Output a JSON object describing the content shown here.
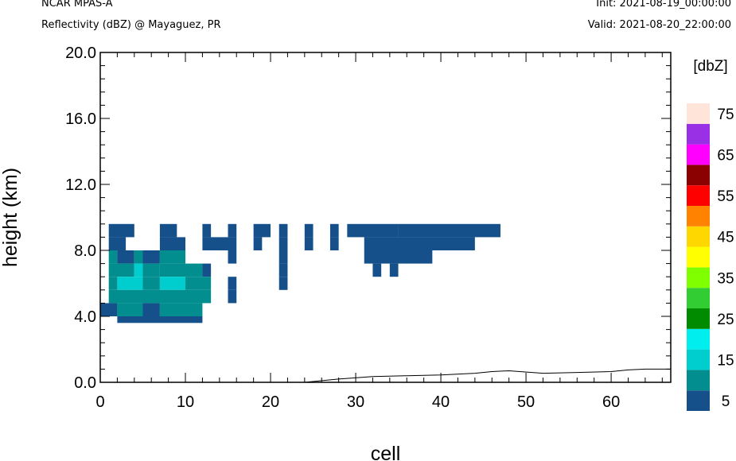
{
  "header": {
    "model": "NCAR MPAS-A",
    "field": "Reflectivity (dBZ) @ Mayaguez, PR",
    "init": "Init: 2021-08-19_00:00:00",
    "valid": "Valid: 2021-08-20_22:00:00"
  },
  "chart_data": {
    "type": "heatmap",
    "xlabel": "cell",
    "ylabel": "height (km)",
    "xlim": [
      0,
      67
    ],
    "ylim": [
      0,
      20
    ],
    "x_ticks": [
      0,
      10,
      20,
      30,
      40,
      50,
      60
    ],
    "y_ticks": [
      "0.0",
      "4.0",
      "8.0",
      "12.0",
      "16.0",
      "20.0"
    ],
    "colorbar": {
      "title": "[dbZ]",
      "labels": [
        "5",
        "15",
        "25",
        "35",
        "45",
        "55",
        "65",
        "75"
      ],
      "colors": [
        "#15508a",
        "#028e8e",
        "#00cdcd",
        "#00eeee",
        "#008b00",
        "#32cd32",
        "#7fff00",
        "#ffff00",
        "#ffd700",
        "#ff8200",
        "#ff0000",
        "#8b0000",
        "#ff00ff",
        "#9a30e6",
        "#ffe4d9"
      ]
    },
    "grid_km_rows": [
      {
        "y": [
          8.8,
          9.6
        ],
        "bins": [
          [
            [
              1,
              4
            ],
            0
          ],
          [
            [
              7,
              9
            ],
            0
          ],
          [
            [
              12,
              13
            ],
            0
          ],
          [
            [
              15,
              16
            ],
            0
          ],
          [
            [
              18,
              20
            ],
            0
          ],
          [
            [
              21,
              22
            ],
            0
          ],
          [
            [
              24,
              25
            ],
            0
          ],
          [
            [
              27,
              28
            ],
            0
          ],
          [
            [
              29,
              35
            ],
            0
          ],
          [
            [
              35,
              47
            ],
            0
          ]
        ]
      },
      {
        "y": [
          8.0,
          8.8
        ],
        "bins": [
          [
            [
              1,
              3
            ],
            0
          ],
          [
            [
              7,
              10
            ],
            0
          ],
          [
            [
              12,
              16
            ],
            0
          ],
          [
            [
              18,
              19
            ],
            0
          ],
          [
            [
              21,
              22
            ],
            0
          ],
          [
            [
              24,
              25
            ],
            0
          ],
          [
            [
              27,
              28
            ],
            0
          ],
          [
            [
              31,
              44
            ],
            0
          ]
        ]
      },
      {
        "y": [
          7.2,
          8.0
        ],
        "bins": [
          [
            [
              1,
              2
            ],
            1
          ],
          [
            [
              2,
              4
            ],
            0
          ],
          [
            [
              4,
              5
            ],
            1
          ],
          [
            [
              5,
              7
            ],
            0
          ],
          [
            [
              7,
              10
            ],
            1
          ],
          [
            [
              15,
              16
            ],
            0
          ],
          [
            [
              21,
              22
            ],
            0
          ],
          [
            [
              31,
              39
            ],
            0
          ]
        ]
      },
      {
        "y": [
          6.4,
          7.2
        ],
        "bins": [
          [
            [
              1,
              4
            ],
            1
          ],
          [
            [
              4,
              5
            ],
            2
          ],
          [
            [
              5,
              7
            ],
            1
          ],
          [
            [
              7,
              12
            ],
            1
          ],
          [
            [
              12,
              13
            ],
            0
          ],
          [
            [
              21,
              22
            ],
            0
          ],
          [
            [
              32,
              33
            ],
            0
          ],
          [
            [
              34,
              35
            ],
            0
          ]
        ]
      },
      {
        "y": [
          5.6,
          6.4
        ],
        "bins": [
          [
            [
              1,
              2
            ],
            1
          ],
          [
            [
              2,
              5
            ],
            2
          ],
          [
            [
              5,
              7
            ],
            1
          ],
          [
            [
              7,
              10
            ],
            2
          ],
          [
            [
              10,
              13
            ],
            1
          ],
          [
            [
              15,
              16
            ],
            0
          ],
          [
            [
              21,
              22
            ],
            0
          ]
        ]
      },
      {
        "y": [
          4.8,
          5.6
        ],
        "bins": [
          [
            [
              1,
              13
            ],
            1
          ],
          [
            [
              15,
              16
            ],
            0
          ]
        ]
      },
      {
        "y": [
          4.0,
          4.8
        ],
        "bins": [
          [
            [
              0,
              2
            ],
            0
          ],
          [
            [
              2,
              5
            ],
            1
          ],
          [
            [
              5,
              7
            ],
            0
          ],
          [
            [
              7,
              12
            ],
            1
          ]
        ]
      },
      {
        "y": [
          3.6,
          4.0
        ],
        "bins": [
          [
            [
              2,
              12
            ],
            0
          ]
        ]
      }
    ],
    "terrain": [
      [
        0,
        0.0
      ],
      [
        24,
        0.0
      ],
      [
        28,
        0.2
      ],
      [
        32,
        0.35
      ],
      [
        36,
        0.4
      ],
      [
        40,
        0.45
      ],
      [
        44,
        0.55
      ],
      [
        46,
        0.65
      ],
      [
        48,
        0.7
      ],
      [
        52,
        0.55
      ],
      [
        56,
        0.6
      ],
      [
        60,
        0.65
      ],
      [
        62,
        0.75
      ],
      [
        64,
        0.8
      ],
      [
        67,
        0.8
      ]
    ]
  }
}
